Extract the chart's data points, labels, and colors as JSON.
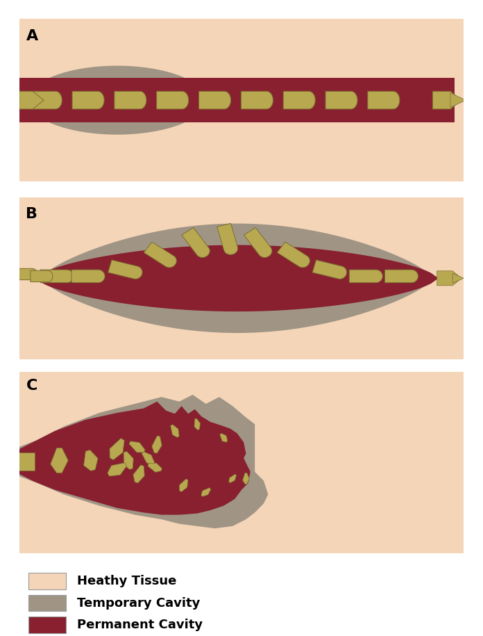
{
  "healthy_tissue_color": "#f5d5b8",
  "temp_cavity_color": "#a09585",
  "perm_cavity_color": "#882030",
  "bullet_color": "#b8a850",
  "bullet_dark": "#7a6d30",
  "bg_color": "#ffffff",
  "label_A": "A",
  "label_B": "B",
  "label_C": "C",
  "legend_items": [
    {
      "label": "Heathy Tissue",
      "color": "#f5d5b8"
    },
    {
      "label": "Temporary Cavity",
      "color": "#a09585"
    },
    {
      "label": "Permanent Cavity",
      "color": "#882030"
    }
  ],
  "fig_width": 6.96,
  "fig_height": 9.15
}
